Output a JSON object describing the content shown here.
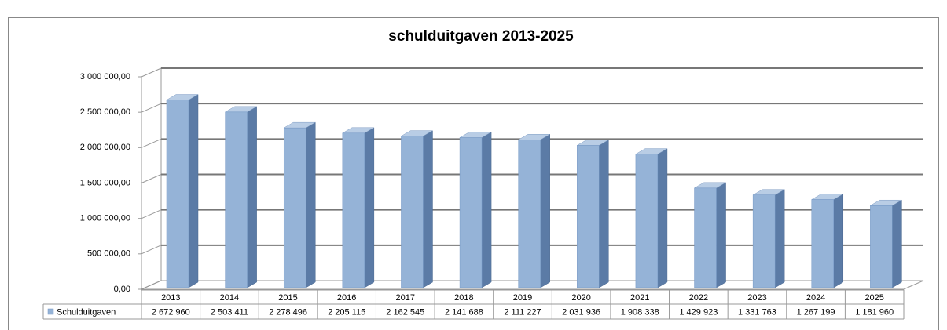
{
  "chart_data": {
    "type": "bar",
    "title": "schulduitgaven 2013-2025",
    "categories": [
      "2013",
      "2014",
      "2015",
      "2016",
      "2017",
      "2018",
      "2019",
      "2020",
      "2021",
      "2022",
      "2023",
      "2024",
      "2025"
    ],
    "series": [
      {
        "name": "Schulduitgaven",
        "color": "#95b3d7",
        "values": [
          2672960,
          2503411,
          2278496,
          2205115,
          2162545,
          2141688,
          2111227,
          2031936,
          1908338,
          1429923,
          1331763,
          1267199,
          1181960
        ],
        "value_labels": [
          "2 672 960",
          "2 503 411",
          "2 278 496",
          "2 205 115",
          "2 162 545",
          "2 141 688",
          "2 111 227",
          "2 031 936",
          "1 908 338",
          "1 429 923",
          "1 331 763",
          "1 267 199",
          "1 181 960"
        ]
      }
    ],
    "ylim": [
      0,
      3000000
    ],
    "yticks": [
      {
        "value": 0,
        "label": "0,00"
      },
      {
        "value": 500000,
        "label": "500 000,00"
      },
      {
        "value": 1000000,
        "label": "1 000 000,00"
      },
      {
        "value": 1500000,
        "label": "1 500 000,00"
      },
      {
        "value": 2000000,
        "label": "2 000 000,00"
      },
      {
        "value": 2500000,
        "label": "2 500 000,00"
      },
      {
        "value": 3000000,
        "label": "3 000 000,00"
      }
    ],
    "grid": true
  }
}
